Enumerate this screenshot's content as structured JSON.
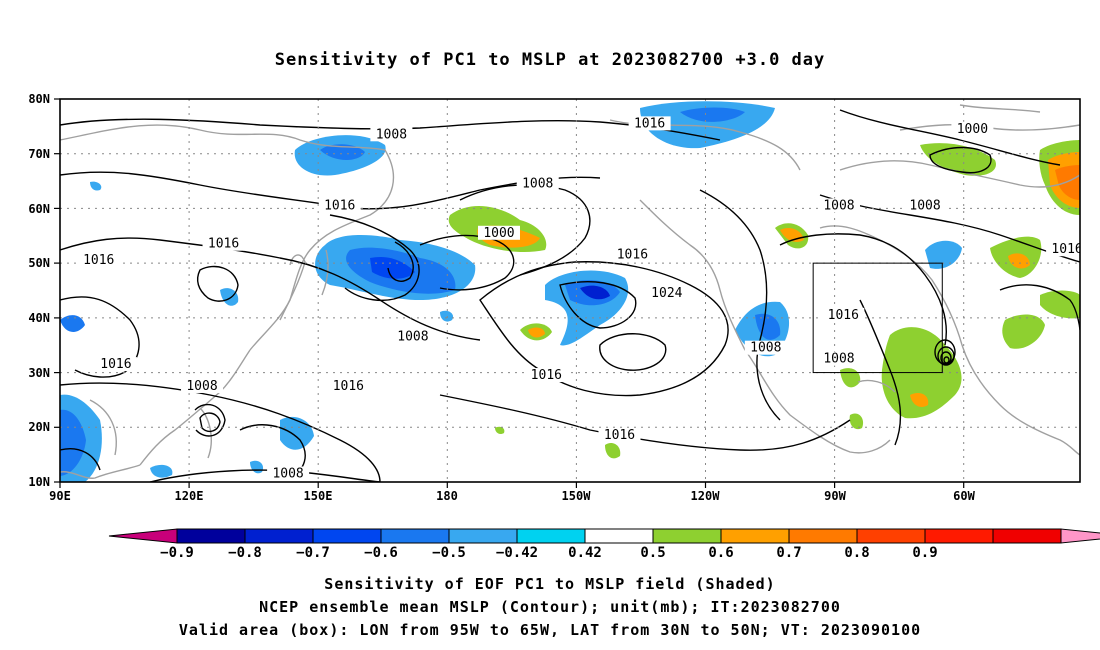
{
  "title": "Sensitivity of PC1 to MSLP at 2023082700 +3.0 day",
  "map": {
    "lat_labels": [
      "80N",
      "70N",
      "60N",
      "50N",
      "40N",
      "30N",
      "20N",
      "10N"
    ],
    "lon_labels": [
      "90E",
      "120E",
      "150E",
      "180",
      "150W",
      "120W",
      "90W",
      "60W"
    ],
    "extent": {
      "lon_min": 90,
      "lon_max": 327,
      "lat_min": 10,
      "lat_max": 80
    },
    "valid_box": {
      "lon_from": "95W",
      "lon_to": "65W",
      "lat_from": "30N",
      "lat_to": "50N"
    },
    "contour_labels": [
      {
        "text": "1008",
        "lon": 167,
        "lat": 73
      },
      {
        "text": "1016",
        "lon": 227,
        "lat": 75
      },
      {
        "text": "1000",
        "lon": 302,
        "lat": 74
      },
      {
        "text": "1008",
        "lon": 201,
        "lat": 64
      },
      {
        "text": "1016",
        "lon": 155,
        "lat": 60
      },
      {
        "text": "1008",
        "lon": 271,
        "lat": 60
      },
      {
        "text": "1008",
        "lon": 291,
        "lat": 60
      },
      {
        "text": "1000",
        "lon": 192,
        "lat": 55
      },
      {
        "text": "1016",
        "lon": 128,
        "lat": 53
      },
      {
        "text": "1016",
        "lon": 99,
        "lat": 50
      },
      {
        "text": "1016",
        "lon": 223,
        "lat": 51
      },
      {
        "text": "1016",
        "lon": 324,
        "lat": 52
      },
      {
        "text": "1016",
        "lon": 272,
        "lat": 40
      },
      {
        "text": "1024",
        "lon": 231,
        "lat": 44
      },
      {
        "text": "1008",
        "lon": 172,
        "lat": 36
      },
      {
        "text": "1008",
        "lon": 254,
        "lat": 34
      },
      {
        "text": "1008",
        "lon": 271,
        "lat": 32
      },
      {
        "text": "1016",
        "lon": 103,
        "lat": 31
      },
      {
        "text": "1016",
        "lon": 157,
        "lat": 27
      },
      {
        "text": "1016",
        "lon": 203,
        "lat": 29
      },
      {
        "text": "1008",
        "lon": 123,
        "lat": 27
      },
      {
        "text": "1016",
        "lon": 220,
        "lat": 18
      },
      {
        "text": "1008",
        "lon": 143,
        "lat": 11
      }
    ]
  },
  "colorbar": {
    "colors": [
      "#c8007a",
      "#00009c",
      "#0020d0",
      "#0046f0",
      "#1a78f0",
      "#38a8f0",
      "#00d2f0",
      "#ffffff",
      "#8ed030",
      "#ffa000",
      "#ff7a00",
      "#ff4000",
      "#ff1a00",
      "#f00000",
      "#ff96c8"
    ],
    "labels": [
      "−0.9",
      "−0.8",
      "−0.7",
      "−0.6",
      "−0.5",
      "−0.42",
      "0.42",
      "0.5",
      "0.6",
      "0.7",
      "0.8",
      "0.9"
    ]
  },
  "captions": {
    "line1": "Sensitivity of EOF PC1 to MSLP field (Shaded)",
    "line2": "NCEP ensemble mean MSLP (Contour); unit(mb); IT:2023082700",
    "line3": "Valid area (box): LON from 95W to 65W, LAT from 30N to 50N; VT: 2023090100"
  }
}
